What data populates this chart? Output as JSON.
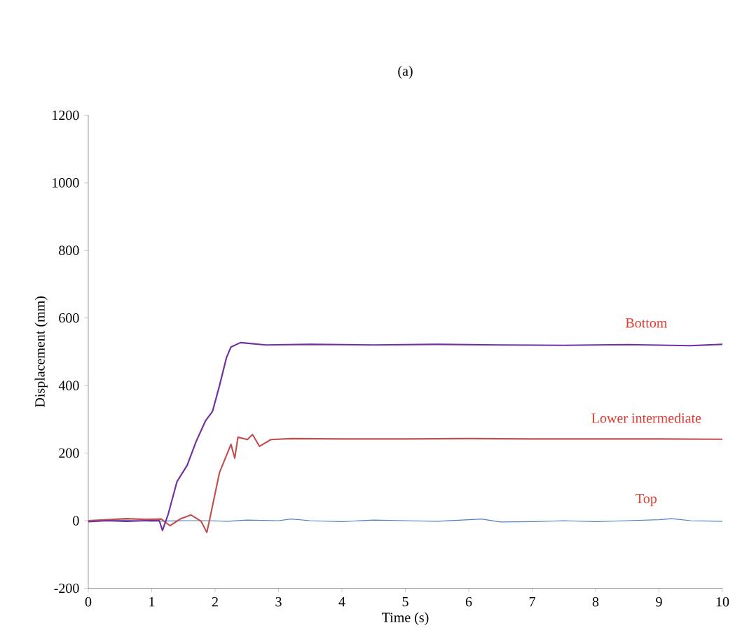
{
  "chart_data": {
    "type": "line",
    "title": "(a)",
    "xlabel": "Time (s)",
    "ylabel": "Displacement (mm)",
    "xlim": [
      0,
      10
    ],
    "ylim": [
      -200,
      1200
    ],
    "xticks": [
      0,
      1,
      2,
      3,
      4,
      5,
      6,
      7,
      8,
      9,
      10
    ],
    "yticks": [
      -200,
      0,
      200,
      400,
      600,
      800,
      1000,
      1200
    ],
    "grid": false,
    "legend": false,
    "marker": "none",
    "line_style": "solid",
    "series": [
      {
        "name": "Top",
        "color": "#4f81bd",
        "x": [
          0,
          0.5,
          1,
          1.5,
          1.9,
          2.2,
          2.5,
          3,
          3.2,
          3.5,
          4,
          4.5,
          5,
          5.5,
          6,
          6.2,
          6.5,
          7,
          7.5,
          8,
          8.5,
          9,
          9.2,
          9.5,
          10
        ],
        "values": [
          0,
          2,
          -2,
          0,
          0,
          -2,
          2,
          0,
          5,
          0,
          -3,
          2,
          0,
          -2,
          3,
          5,
          -4,
          -3,
          0,
          -3,
          0,
          3,
          6,
          0,
          -2
        ]
      },
      {
        "name": "Lower intermediate",
        "color": "#c0504d",
        "x": [
          0,
          0.3,
          0.6,
          0.9,
          1.15,
          1.29,
          1.45,
          1.62,
          1.78,
          1.87,
          1.94,
          2.07,
          2.25,
          2.31,
          2.36,
          2.51,
          2.59,
          2.7,
          2.88,
          3.2,
          4,
          5,
          6,
          7,
          8,
          9,
          10
        ],
        "values": [
          0,
          3,
          6,
          4,
          5,
          -15,
          5,
          17,
          -2,
          -35,
          27,
          143,
          226,
          185,
          247,
          240,
          255,
          220,
          240,
          243,
          242,
          242,
          243,
          242,
          242,
          242,
          241
        ]
      },
      {
        "name": "Bottom",
        "color": "#7030a0",
        "x": [
          0,
          0.3,
          0.6,
          0.9,
          1.12,
          1.17,
          1.26,
          1.4,
          1.56,
          1.7,
          1.85,
          1.96,
          2.07,
          2.18,
          2.25,
          2.4,
          2.8,
          3.5,
          4.5,
          5.5,
          6.5,
          7.5,
          8.5,
          9.5,
          10
        ],
        "values": [
          -3,
          0,
          -2,
          0,
          0,
          -29,
          19,
          116,
          164,
          234,
          296,
          324,
          400,
          483,
          514,
          527,
          520,
          522,
          520,
          522,
          520,
          519,
          521,
          518,
          522
        ]
      }
    ]
  }
}
